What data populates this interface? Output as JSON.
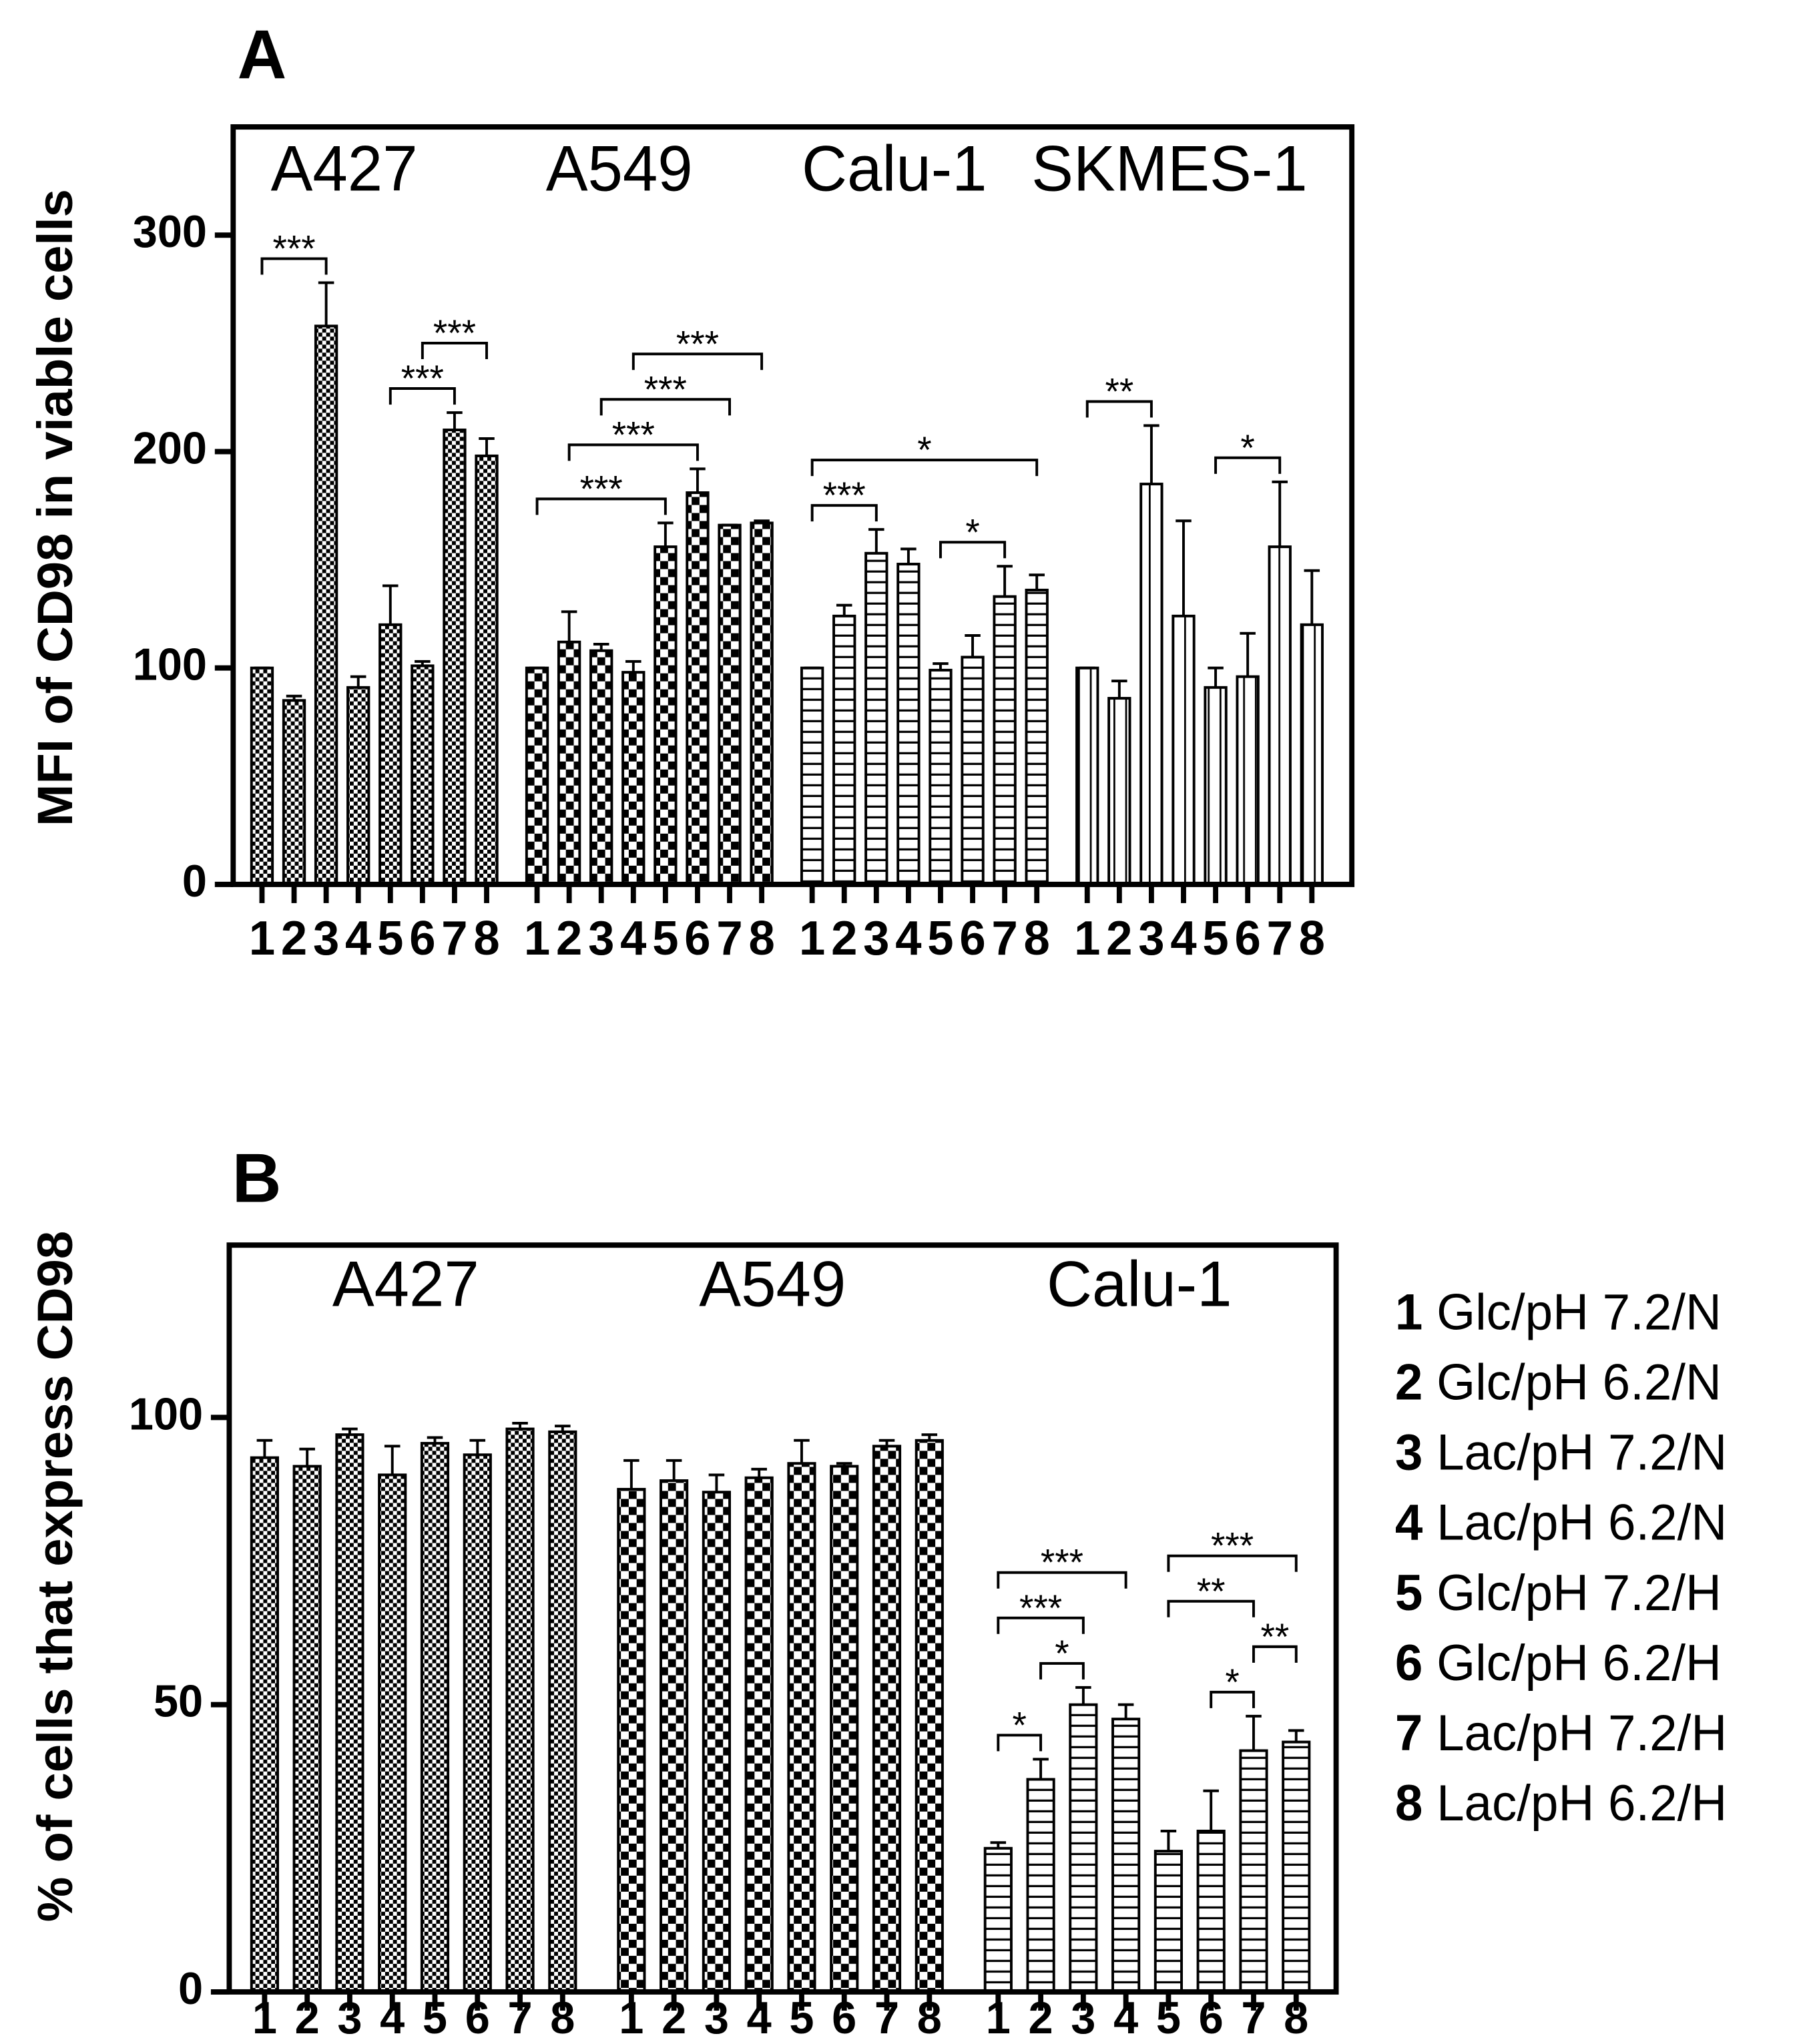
{
  "chart_data": [
    {
      "type": "bar",
      "panel": "A",
      "y_label": "MFI of CD98 in viable cells",
      "categories": [
        "1",
        "2",
        "3",
        "4",
        "5",
        "6",
        "7",
        "8"
      ],
      "ylim": [
        0,
        350
      ],
      "yticks": [
        0,
        100,
        200,
        300
      ],
      "groups": [
        {
          "name": "A427",
          "pattern": "fine-checker",
          "values": [
            100,
            85,
            258,
            91,
            120,
            101,
            210,
            198
          ],
          "errors": [
            0,
            2,
            20,
            5,
            18,
            2,
            8,
            8
          ]
        },
        {
          "name": "A549",
          "pattern": "coarse-checker",
          "values": [
            100,
            112,
            108,
            98,
            156,
            181,
            166,
            167
          ],
          "errors": [
            0,
            14,
            3,
            5,
            11,
            11,
            0,
            1
          ]
        },
        {
          "name": "Calu-1",
          "pattern": "horizontal-lines",
          "values": [
            100,
            124,
            153,
            148,
            99,
            105,
            133,
            136
          ],
          "errors": [
            0,
            5,
            11,
            7,
            3,
            10,
            14,
            7
          ]
        },
        {
          "name": "SKMES-1",
          "pattern": "vertical-lines",
          "values": [
            100,
            86,
            185,
            124,
            91,
            96,
            156,
            120
          ],
          "errors": [
            0,
            8,
            27,
            44,
            9,
            20,
            30,
            25
          ]
        }
      ],
      "annotations": [
        {
          "group": "A427",
          "from": "1",
          "to": "3",
          "text": "***"
        },
        {
          "group": "A427",
          "from": "5",
          "to": "7",
          "text": "***"
        },
        {
          "group": "A427",
          "from": "6",
          "to": "8",
          "text": "***"
        },
        {
          "group": "A549",
          "from": "1",
          "to": "5",
          "text": "***"
        },
        {
          "group": "A549",
          "from": "2",
          "to": "6",
          "text": "***"
        },
        {
          "group": "A549",
          "from": "3",
          "to": "7",
          "text": "***"
        },
        {
          "group": "A549",
          "from": "4",
          "to": "8",
          "text": "***"
        },
        {
          "group": "Calu-1",
          "from": "1",
          "to": "3",
          "text": "***"
        },
        {
          "group": "Calu-1",
          "from": "5",
          "to": "7",
          "text": "*"
        },
        {
          "group": "Calu-1",
          "from": "1",
          "to": "8",
          "text": "*"
        },
        {
          "group": "SKMES-1",
          "from": "1",
          "to": "3",
          "text": "**"
        },
        {
          "group": "SKMES-1",
          "from": "5",
          "to": "7",
          "text": "*"
        }
      ]
    },
    {
      "type": "bar",
      "panel": "B",
      "y_label": "% of cells that express CD98",
      "categories": [
        "1",
        "2",
        "3",
        "4",
        "5",
        "6",
        "7",
        "8"
      ],
      "ylim": [
        0,
        130
      ],
      "yticks": [
        0,
        50,
        100
      ],
      "groups": [
        {
          "name": "A427",
          "pattern": "fine-checker",
          "values": [
            93,
            91.5,
            97,
            90,
            95.5,
            93.5,
            98,
            97.5
          ],
          "errors": [
            3,
            3,
            1,
            5,
            1,
            2.5,
            1,
            1
          ]
        },
        {
          "name": "A549",
          "pattern": "coarse-checker",
          "values": [
            87.5,
            89,
            87,
            89.5,
            92,
            91.5,
            95,
            96
          ],
          "errors": [
            5,
            3.5,
            3,
            1.5,
            4,
            0.5,
            1,
            1
          ]
        },
        {
          "name": "Calu-1",
          "pattern": "horizontal-lines",
          "values": [
            25,
            37,
            50,
            47.5,
            24.5,
            28,
            42,
            43.5
          ],
          "errors": [
            1,
            3.5,
            3,
            2.5,
            3.5,
            7,
            6,
            2
          ]
        }
      ],
      "annotations": [
        {
          "group": "Calu-1",
          "from": "1",
          "to": "2",
          "text": "*"
        },
        {
          "group": "Calu-1",
          "from": "2",
          "to": "3",
          "text": "*"
        },
        {
          "group": "Calu-1",
          "from": "1",
          "to": "3",
          "text": "***"
        },
        {
          "group": "Calu-1",
          "from": "1",
          "to": "4",
          "text": "***"
        },
        {
          "group": "Calu-1",
          "from": "6",
          "to": "7",
          "text": "*"
        },
        {
          "group": "Calu-1",
          "from": "5",
          "to": "7",
          "text": "**"
        },
        {
          "group": "Calu-1",
          "from": "5",
          "to": "8",
          "text": "***"
        },
        {
          "group": "Calu-1",
          "from": "7",
          "to": "8",
          "text": "**"
        }
      ],
      "legend": [
        {
          "number": "1",
          "label": "Glc/pH 7.2/N"
        },
        {
          "number": "2",
          "label": "Glc/pH 6.2/N"
        },
        {
          "number": "3",
          "label": "Lac/pH 7.2/N"
        },
        {
          "number": "4",
          "label": "Lac/pH 6.2/N"
        },
        {
          "number": "5",
          "label": "Glc/pH 7.2/H"
        },
        {
          "number": "6",
          "label": "Glc/pH 6.2/H"
        },
        {
          "number": "7",
          "label": "Lac/pH 7.2/H"
        },
        {
          "number": "8",
          "label": "Lac/pH 6.2/H"
        }
      ]
    }
  ]
}
